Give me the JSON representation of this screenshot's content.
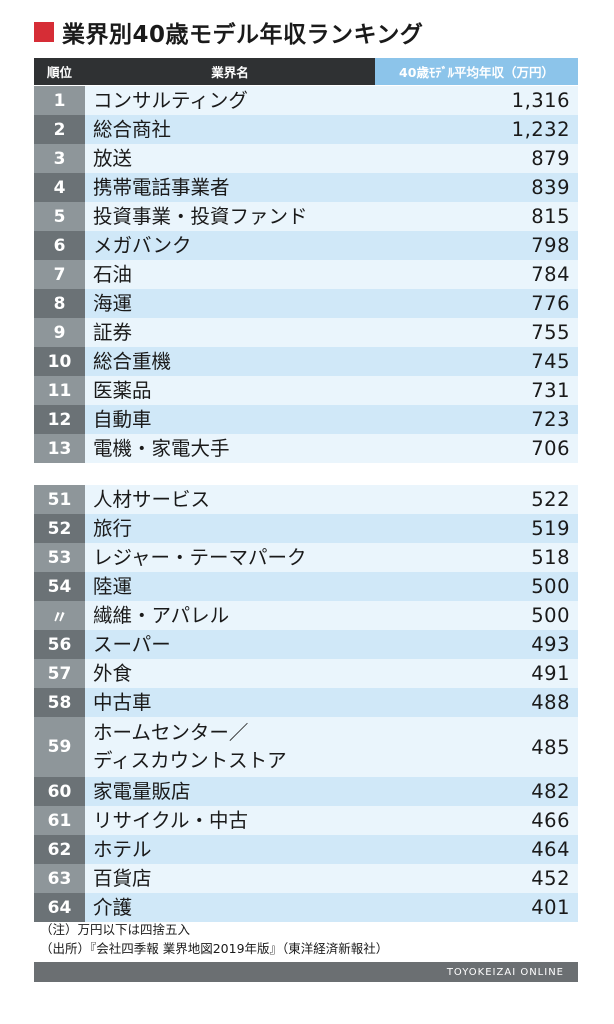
{
  "title": "業界別40歳モデル年収ランキング",
  "header": {
    "rank": "順位",
    "industry": "業界名",
    "income": "40歳ﾓﾃﾞﾙ平均年収（万円）"
  },
  "top": [
    {
      "rank": "1",
      "name": "コンサルティング",
      "value": "1,316"
    },
    {
      "rank": "2",
      "name": "総合商社",
      "value": "1,232"
    },
    {
      "rank": "3",
      "name": "放送",
      "value": "879"
    },
    {
      "rank": "4",
      "name": "携帯電話事業者",
      "value": "839"
    },
    {
      "rank": "5",
      "name": "投資事業・投資ファンド",
      "value": "815"
    },
    {
      "rank": "6",
      "name": "メガバンク",
      "value": "798"
    },
    {
      "rank": "7",
      "name": "石油",
      "value": "784"
    },
    {
      "rank": "8",
      "name": "海運",
      "value": "776"
    },
    {
      "rank": "9",
      "name": "証券",
      "value": "755"
    },
    {
      "rank": "10",
      "name": "総合重機",
      "value": "745"
    },
    {
      "rank": "11",
      "name": "医薬品",
      "value": "731"
    },
    {
      "rank": "12",
      "name": "自動車",
      "value": "723"
    },
    {
      "rank": "13",
      "name": "電機・家電大手",
      "value": "706"
    }
  ],
  "bottom": [
    {
      "rank": "51",
      "name": "人材サービス",
      "value": "522"
    },
    {
      "rank": "52",
      "name": "旅行",
      "value": "519"
    },
    {
      "rank": "53",
      "name": "レジャー・テーマパーク",
      "value": "518"
    },
    {
      "rank": "54",
      "name": "陸運",
      "value": "500"
    },
    {
      "rank": "〃",
      "name": "繊維・アパレル",
      "value": "500"
    },
    {
      "rank": "56",
      "name": "スーパー",
      "value": "493"
    },
    {
      "rank": "57",
      "name": "外食",
      "value": "491"
    },
    {
      "rank": "58",
      "name": "中古車",
      "value": "488"
    },
    {
      "rank": "59",
      "name": "ホームセンター／",
      "name2": "ディスカウントストア",
      "value": "485"
    },
    {
      "rank": "60",
      "name": "家電量販店",
      "value": "482"
    },
    {
      "rank": "61",
      "name": "リサイクル・中古",
      "value": "466"
    },
    {
      "rank": "62",
      "name": "ホテル",
      "value": "464"
    },
    {
      "rank": "63",
      "name": "百貨店",
      "value": "452"
    },
    {
      "rank": "64",
      "name": "介護",
      "value": "401"
    }
  ],
  "notes": {
    "note": "（注）万円以下は四捨五入",
    "source": "（出所）『会社四季報 業界地図2019年版』（東洋経済新報社）"
  },
  "footer": "TOYOKEIZAI ONLINE",
  "colors": {
    "accent": "#d62d36",
    "header_dark": "#2f3133",
    "header_blue": "#8cc4ea",
    "row_light": "#eaf5fc",
    "row_blue": "#d0e8f8"
  }
}
